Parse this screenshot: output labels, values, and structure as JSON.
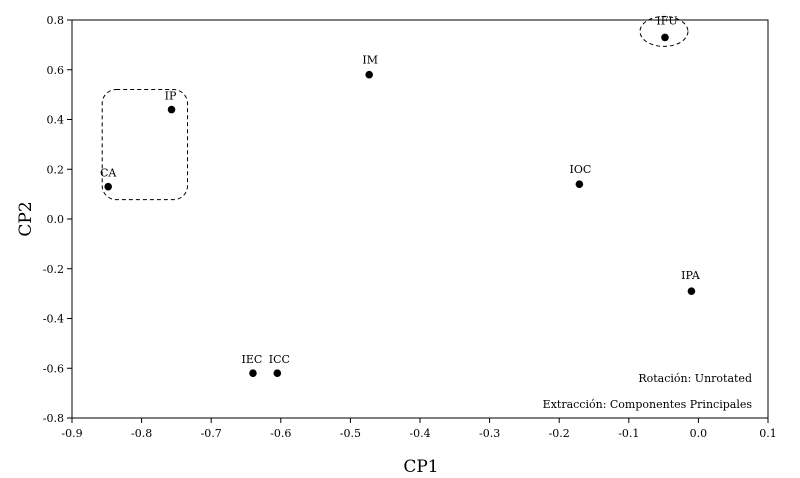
{
  "chart_data": {
    "type": "scatter",
    "title": "",
    "xlabel": "CP1",
    "ylabel": "CP2",
    "xlim": [
      -0.9,
      0.1
    ],
    "ylim": [
      -0.8,
      0.8
    ],
    "xticks": [
      "-0.9",
      "-0.8",
      "-0.7",
      "-0.6",
      "-0.5",
      "-0.4",
      "-0.3",
      "-0.2",
      "-0.1",
      "0.0",
      "0.1"
    ],
    "yticks": [
      "0.8",
      "0.6",
      "0.4",
      "0.2",
      "0.0",
      "-0.2",
      "-0.4",
      "-0.6",
      "-0.8"
    ],
    "grid": false,
    "points": [
      {
        "label": "IFU",
        "x": -0.048,
        "y": 0.73
      },
      {
        "label": "IM",
        "x": -0.473,
        "y": 0.58
      },
      {
        "label": "IP",
        "x": -0.757,
        "y": 0.44
      },
      {
        "label": "CA",
        "x": -0.848,
        "y": 0.13
      },
      {
        "label": "IOC",
        "x": -0.171,
        "y": 0.14
      },
      {
        "label": "IPA",
        "x": -0.01,
        "y": -0.29
      },
      {
        "label": "IEC",
        "x": -0.64,
        "y": -0.62
      },
      {
        "label": "ICC",
        "x": -0.605,
        "y": -0.62
      }
    ],
    "annotations": [
      "Rotación: Unrotated",
      "Extracción: Componentes Principales"
    ]
  }
}
